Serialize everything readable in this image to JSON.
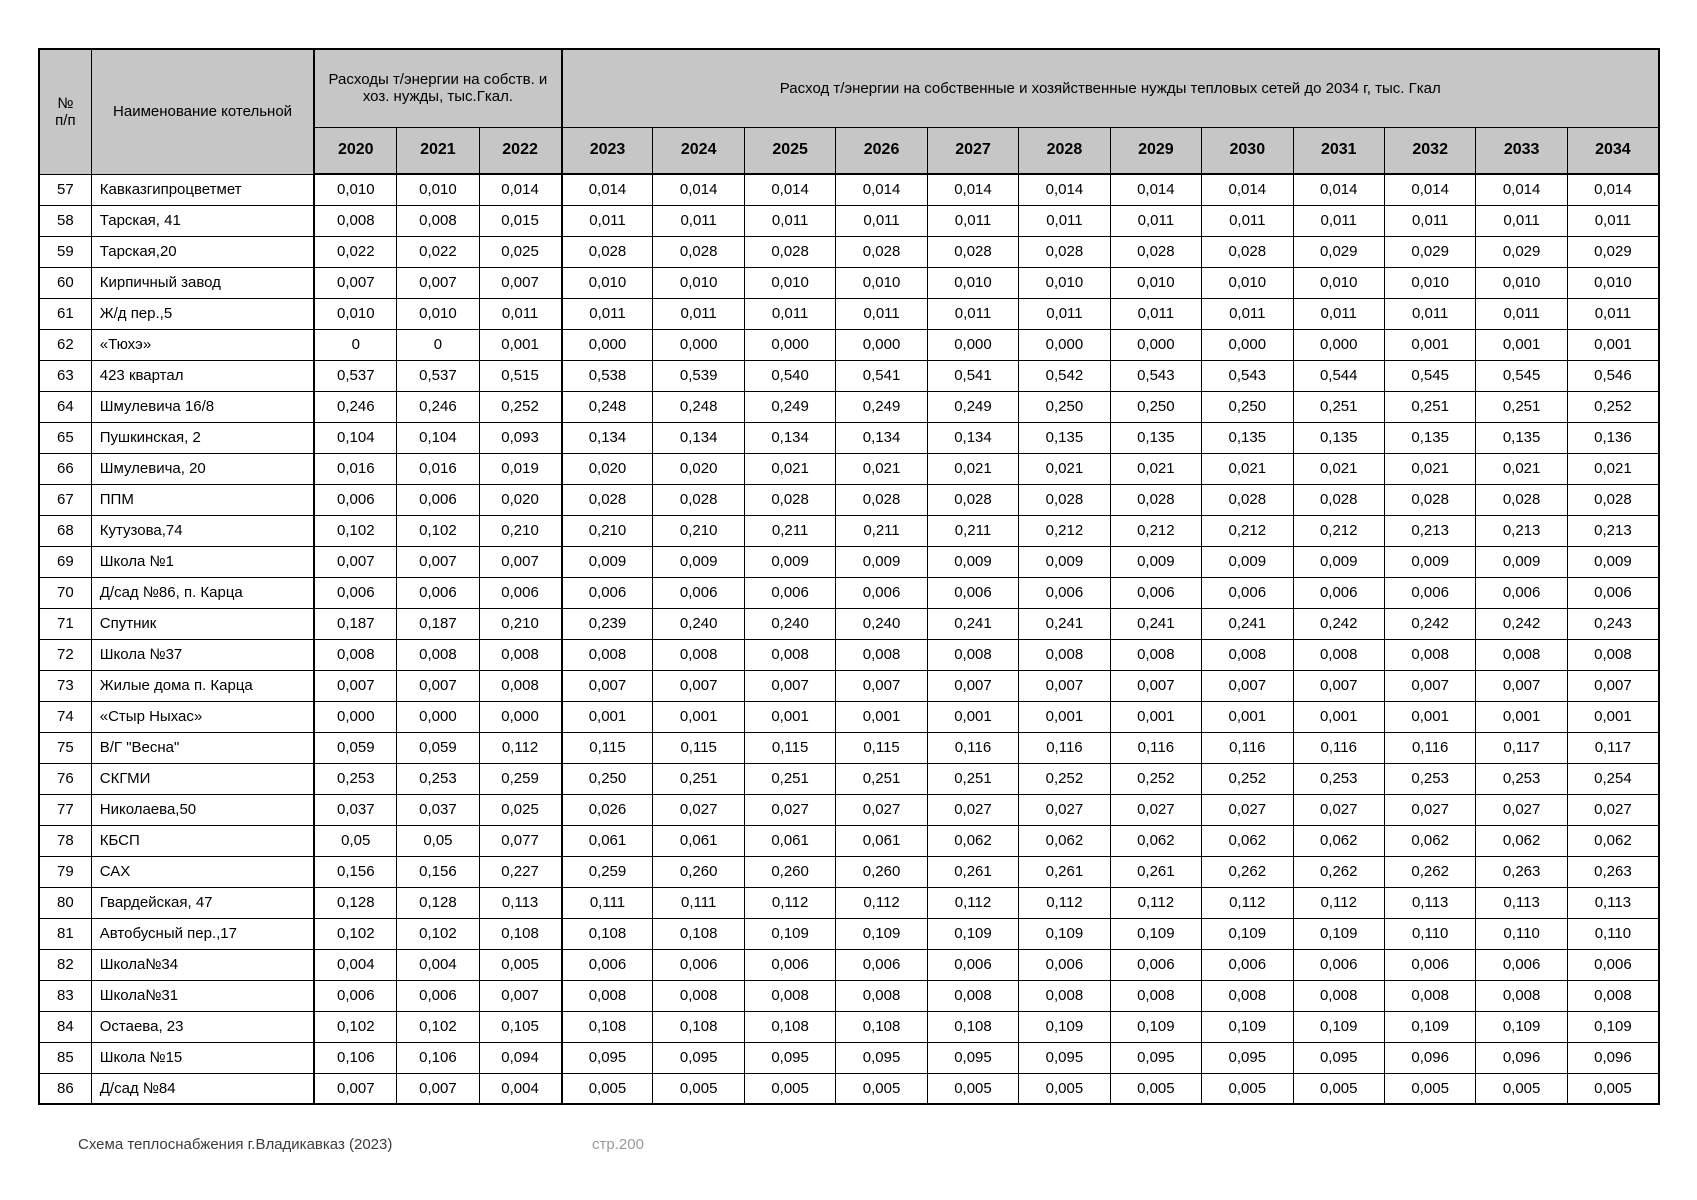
{
  "colors": {
    "header_bg": "#c6c6c6",
    "border": "#000000",
    "page_bg": "#ffffff",
    "footer_text": "#3c3c3c",
    "footer_page_text": "#9a9a9a"
  },
  "footer": {
    "left_text": "Схема теплоснабжения г.Владикавказ (2023)",
    "page_label": "стр.200"
  },
  "table": {
    "col_num_header": "№\nп/п",
    "col_name_header": "Наименование котельной",
    "group1_header": "Расходы т/энергии на собств. и хоз. нужды, тыс.Гкал.",
    "group2_header": "Расход т/энергии на собственные и хозяйственные нужды тепловых сетей до 2034 г, тыс. Гкал",
    "group1_years": [
      "2020",
      "2021",
      "2022"
    ],
    "group2_years": [
      "2023",
      "2024",
      "2025",
      "2026",
      "2027",
      "2028",
      "2029",
      "2030",
      "2031",
      "2032",
      "2033",
      "2034"
    ],
    "rows": [
      {
        "num": "57",
        "name": "Кавказгипроцветмет",
        "values": [
          "0,010",
          "0,010",
          "0,014",
          "0,014",
          "0,014",
          "0,014",
          "0,014",
          "0,014",
          "0,014",
          "0,014",
          "0,014",
          "0,014",
          "0,014",
          "0,014",
          "0,014"
        ]
      },
      {
        "num": "58",
        "name": "Тарская, 41",
        "values": [
          "0,008",
          "0,008",
          "0,015",
          "0,011",
          "0,011",
          "0,011",
          "0,011",
          "0,011",
          "0,011",
          "0,011",
          "0,011",
          "0,011",
          "0,011",
          "0,011",
          "0,011"
        ]
      },
      {
        "num": "59",
        "name": "Тарская,20",
        "values": [
          "0,022",
          "0,022",
          "0,025",
          "0,028",
          "0,028",
          "0,028",
          "0,028",
          "0,028",
          "0,028",
          "0,028",
          "0,028",
          "0,029",
          "0,029",
          "0,029",
          "0,029"
        ]
      },
      {
        "num": "60",
        "name": "Кирпичный завод",
        "values": [
          "0,007",
          "0,007",
          "0,007",
          "0,010",
          "0,010",
          "0,010",
          "0,010",
          "0,010",
          "0,010",
          "0,010",
          "0,010",
          "0,010",
          "0,010",
          "0,010",
          "0,010"
        ]
      },
      {
        "num": "61",
        "name": "Ж/д  пер.,5",
        "values": [
          "0,010",
          "0,010",
          "0,011",
          "0,011",
          "0,011",
          "0,011",
          "0,011",
          "0,011",
          "0,011",
          "0,011",
          "0,011",
          "0,011",
          "0,011",
          "0,011",
          "0,011"
        ]
      },
      {
        "num": "62",
        "name": "«Тюхэ»",
        "values": [
          "0",
          "0",
          "0,001",
          "0,000",
          "0,000",
          "0,000",
          "0,000",
          "0,000",
          "0,000",
          "0,000",
          "0,000",
          "0,000",
          "0,001",
          "0,001",
          "0,001"
        ]
      },
      {
        "num": "63",
        "name": "423 квартал",
        "values": [
          "0,537",
          "0,537",
          "0,515",
          "0,538",
          "0,539",
          "0,540",
          "0,541",
          "0,541",
          "0,542",
          "0,543",
          "0,543",
          "0,544",
          "0,545",
          "0,545",
          "0,546"
        ]
      },
      {
        "num": "64",
        "name": "Шмулевича 16/8",
        "values": [
          "0,246",
          "0,246",
          "0,252",
          "0,248",
          "0,248",
          "0,249",
          "0,249",
          "0,249",
          "0,250",
          "0,250",
          "0,250",
          "0,251",
          "0,251",
          "0,251",
          "0,252"
        ]
      },
      {
        "num": "65",
        "name": "Пушкинская, 2",
        "values": [
          "0,104",
          "0,104",
          "0,093",
          "0,134",
          "0,134",
          "0,134",
          "0,134",
          "0,134",
          "0,135",
          "0,135",
          "0,135",
          "0,135",
          "0,135",
          "0,135",
          "0,136"
        ]
      },
      {
        "num": "66",
        "name": "Шмулевича, 20",
        "values": [
          "0,016",
          "0,016",
          "0,019",
          "0,020",
          "0,020",
          "0,021",
          "0,021",
          "0,021",
          "0,021",
          "0,021",
          "0,021",
          "0,021",
          "0,021",
          "0,021",
          "0,021"
        ]
      },
      {
        "num": "67",
        "name": "ППМ",
        "values": [
          "0,006",
          "0,006",
          "0,020",
          "0,028",
          "0,028",
          "0,028",
          "0,028",
          "0,028",
          "0,028",
          "0,028",
          "0,028",
          "0,028",
          "0,028",
          "0,028",
          "0,028"
        ]
      },
      {
        "num": "68",
        "name": "Кутузова,74",
        "values": [
          "0,102",
          "0,102",
          "0,210",
          "0,210",
          "0,210",
          "0,211",
          "0,211",
          "0,211",
          "0,212",
          "0,212",
          "0,212",
          "0,212",
          "0,213",
          "0,213",
          "0,213"
        ]
      },
      {
        "num": "69",
        "name": "Школа №1",
        "values": [
          "0,007",
          "0,007",
          "0,007",
          "0,009",
          "0,009",
          "0,009",
          "0,009",
          "0,009",
          "0,009",
          "0,009",
          "0,009",
          "0,009",
          "0,009",
          "0,009",
          "0,009"
        ]
      },
      {
        "num": "70",
        "name": "Д/сад №86, п. Карца",
        "values": [
          "0,006",
          "0,006",
          "0,006",
          "0,006",
          "0,006",
          "0,006",
          "0,006",
          "0,006",
          "0,006",
          "0,006",
          "0,006",
          "0,006",
          "0,006",
          "0,006",
          "0,006"
        ]
      },
      {
        "num": "71",
        "name": "Спутник",
        "values": [
          "0,187",
          "0,187",
          "0,210",
          "0,239",
          "0,240",
          "0,240",
          "0,240",
          "0,241",
          "0,241",
          "0,241",
          "0,241",
          "0,242",
          "0,242",
          "0,242",
          "0,243"
        ]
      },
      {
        "num": "72",
        "name": "Школа №37",
        "values": [
          "0,008",
          "0,008",
          "0,008",
          "0,008",
          "0,008",
          "0,008",
          "0,008",
          "0,008",
          "0,008",
          "0,008",
          "0,008",
          "0,008",
          "0,008",
          "0,008",
          "0,008"
        ]
      },
      {
        "num": "73",
        "name": "Жилые дома п. Карца",
        "values": [
          "0,007",
          "0,007",
          "0,008",
          "0,007",
          "0,007",
          "0,007",
          "0,007",
          "0,007",
          "0,007",
          "0,007",
          "0,007",
          "0,007",
          "0,007",
          "0,007",
          "0,007"
        ]
      },
      {
        "num": "74",
        "name": "«Стыр Ныхас»",
        "values": [
          "0,000",
          "0,000",
          "0,000",
          "0,001",
          "0,001",
          "0,001",
          "0,001",
          "0,001",
          "0,001",
          "0,001",
          "0,001",
          "0,001",
          "0,001",
          "0,001",
          "0,001"
        ]
      },
      {
        "num": "75",
        "name": "В/Г \"Весна\"",
        "values": [
          "0,059",
          "0,059",
          "0,112",
          "0,115",
          "0,115",
          "0,115",
          "0,115",
          "0,116",
          "0,116",
          "0,116",
          "0,116",
          "0,116",
          "0,116",
          "0,117",
          "0,117"
        ]
      },
      {
        "num": "76",
        "name": "СКГМИ",
        "values": [
          "0,253",
          "0,253",
          "0,259",
          "0,250",
          "0,251",
          "0,251",
          "0,251",
          "0,251",
          "0,252",
          "0,252",
          "0,252",
          "0,253",
          "0,253",
          "0,253",
          "0,254"
        ]
      },
      {
        "num": "77",
        "name": "Николаева,50",
        "values": [
          "0,037",
          "0,037",
          "0,025",
          "0,026",
          "0,027",
          "0,027",
          "0,027",
          "0,027",
          "0,027",
          "0,027",
          "0,027",
          "0,027",
          "0,027",
          "0,027",
          "0,027"
        ]
      },
      {
        "num": "78",
        "name": "КБСП",
        "values": [
          "0,05",
          "0,05",
          "0,077",
          "0,061",
          "0,061",
          "0,061",
          "0,061",
          "0,062",
          "0,062",
          "0,062",
          "0,062",
          "0,062",
          "0,062",
          "0,062",
          "0,062"
        ]
      },
      {
        "num": "79",
        "name": "САХ",
        "values": [
          "0,156",
          "0,156",
          "0,227",
          "0,259",
          "0,260",
          "0,260",
          "0,260",
          "0,261",
          "0,261",
          "0,261",
          "0,262",
          "0,262",
          "0,262",
          "0,263",
          "0,263"
        ]
      },
      {
        "num": "80",
        "name": "Гвардейская, 47",
        "values": [
          "0,128",
          "0,128",
          "0,113",
          "0,111",
          "0,111",
          "0,112",
          "0,112",
          "0,112",
          "0,112",
          "0,112",
          "0,112",
          "0,112",
          "0,113",
          "0,113",
          "0,113"
        ]
      },
      {
        "num": "81",
        "name": "Автобусный пер.,17",
        "values": [
          "0,102",
          "0,102",
          "0,108",
          "0,108",
          "0,108",
          "0,109",
          "0,109",
          "0,109",
          "0,109",
          "0,109",
          "0,109",
          "0,109",
          "0,110",
          "0,110",
          "0,110"
        ]
      },
      {
        "num": "82",
        "name": "Школа№34",
        "values": [
          "0,004",
          "0,004",
          "0,005",
          "0,006",
          "0,006",
          "0,006",
          "0,006",
          "0,006",
          "0,006",
          "0,006",
          "0,006",
          "0,006",
          "0,006",
          "0,006",
          "0,006"
        ]
      },
      {
        "num": "83",
        "name": "Школа№31",
        "values": [
          "0,006",
          "0,006",
          "0,007",
          "0,008",
          "0,008",
          "0,008",
          "0,008",
          "0,008",
          "0,008",
          "0,008",
          "0,008",
          "0,008",
          "0,008",
          "0,008",
          "0,008"
        ]
      },
      {
        "num": "84",
        "name": "Остаева, 23",
        "values": [
          "0,102",
          "0,102",
          "0,105",
          "0,108",
          "0,108",
          "0,108",
          "0,108",
          "0,108",
          "0,109",
          "0,109",
          "0,109",
          "0,109",
          "0,109",
          "0,109",
          "0,109"
        ]
      },
      {
        "num": "85",
        "name": "Школа №15",
        "values": [
          "0,106",
          "0,106",
          "0,094",
          "0,095",
          "0,095",
          "0,095",
          "0,095",
          "0,095",
          "0,095",
          "0,095",
          "0,095",
          "0,095",
          "0,096",
          "0,096",
          "0,096"
        ]
      },
      {
        "num": "86",
        "name": "Д/сад №84",
        "values": [
          "0,007",
          "0,007",
          "0,004",
          "0,005",
          "0,005",
          "0,005",
          "0,005",
          "0,005",
          "0,005",
          "0,005",
          "0,005",
          "0,005",
          "0,005",
          "0,005",
          "0,005"
        ]
      }
    ]
  }
}
